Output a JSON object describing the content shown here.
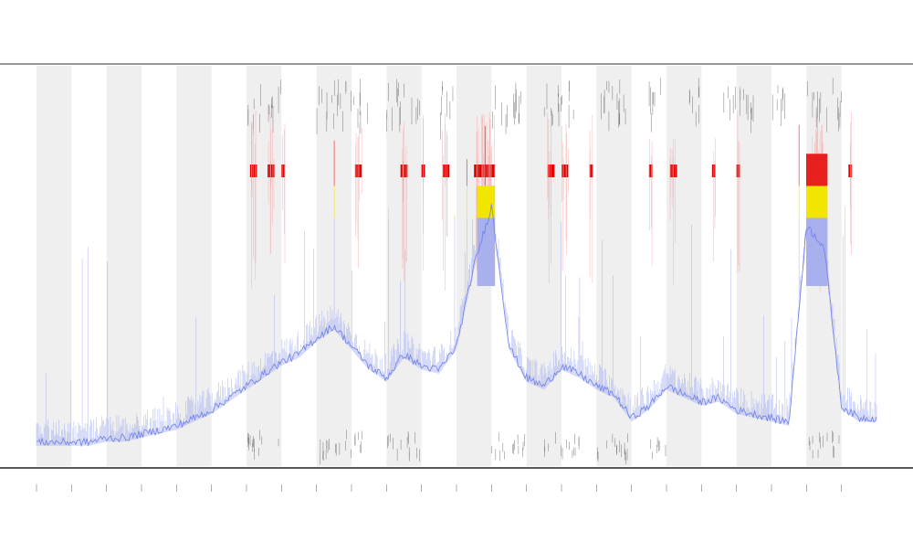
{
  "chart_data": {
    "type": "line",
    "title": "",
    "xlabel": "",
    "ylabel": "",
    "grid": false,
    "legend": "none",
    "x_range": [
      0,
      24
    ],
    "y_range": [
      0,
      1
    ],
    "threshold_yellow": 0.62,
    "threshold_red": 0.7,
    "series": [
      {
        "values": [
          [
            0.0,
            0.06
          ],
          [
            0.5,
            0.06
          ],
          [
            1.0,
            0.06
          ],
          [
            1.5,
            0.06
          ],
          [
            2.0,
            0.07
          ],
          [
            2.5,
            0.07
          ],
          [
            3.0,
            0.08
          ],
          [
            3.5,
            0.09
          ],
          [
            4.0,
            0.1
          ],
          [
            4.5,
            0.12
          ],
          [
            5.0,
            0.14
          ],
          [
            5.5,
            0.17
          ],
          [
            6.0,
            0.2
          ],
          [
            6.5,
            0.23
          ],
          [
            7.0,
            0.26
          ],
          [
            7.5,
            0.28
          ],
          [
            8.0,
            0.32
          ],
          [
            8.5,
            0.35
          ],
          [
            9.0,
            0.3
          ],
          [
            9.5,
            0.25
          ],
          [
            10.0,
            0.22
          ],
          [
            10.5,
            0.28
          ],
          [
            11.0,
            0.25
          ],
          [
            11.5,
            0.24
          ],
          [
            12.0,
            0.3
          ],
          [
            12.5,
            0.5
          ],
          [
            13.0,
            0.65
          ],
          [
            13.5,
            0.3
          ],
          [
            14.0,
            0.22
          ],
          [
            14.5,
            0.2
          ],
          [
            15.0,
            0.25
          ],
          [
            15.5,
            0.23
          ],
          [
            16.0,
            0.2
          ],
          [
            16.5,
            0.18
          ],
          [
            17.0,
            0.12
          ],
          [
            17.5,
            0.15
          ],
          [
            18.0,
            0.2
          ],
          [
            18.5,
            0.18
          ],
          [
            19.0,
            0.16
          ],
          [
            19.5,
            0.17
          ],
          [
            20.0,
            0.14
          ],
          [
            20.5,
            0.13
          ],
          [
            21.0,
            0.12
          ],
          [
            21.5,
            0.11
          ],
          [
            22.0,
            0.6
          ],
          [
            22.5,
            0.55
          ],
          [
            23.0,
            0.15
          ],
          [
            23.5,
            0.12
          ],
          [
            24.0,
            0.12
          ]
        ]
      }
    ],
    "bands": [
      [
        0,
        1
      ],
      [
        2,
        3
      ],
      [
        4,
        5
      ],
      [
        6,
        7
      ],
      [
        8,
        9
      ],
      [
        10,
        11
      ],
      [
        12,
        13
      ],
      [
        14,
        15
      ],
      [
        16,
        17
      ],
      [
        18,
        19
      ],
      [
        20,
        21
      ],
      [
        22,
        23
      ]
    ],
    "red_event_ranges": [
      [
        6.1,
        6.3
      ],
      [
        6.6,
        6.8
      ],
      [
        7.0,
        7.1
      ],
      [
        9.1,
        9.3
      ],
      [
        10.4,
        10.6
      ],
      [
        11.0,
        11.1
      ],
      [
        11.6,
        11.8
      ],
      [
        12.5,
        13.1
      ],
      [
        14.6,
        14.8
      ],
      [
        15.0,
        15.2
      ],
      [
        15.8,
        15.9
      ],
      [
        17.5,
        17.6
      ],
      [
        18.1,
        18.3
      ],
      [
        19.3,
        19.4
      ],
      [
        20.0,
        20.1
      ],
      [
        22.0,
        22.5
      ],
      [
        23.2,
        23.3
      ]
    ],
    "top_marker_ranges": [
      [
        6.0,
        7.0
      ],
      [
        8.0,
        9.5
      ],
      [
        10.0,
        11.0
      ],
      [
        11.5,
        12.0
      ],
      [
        13.0,
        14.0
      ],
      [
        14.5,
        15.5
      ],
      [
        16.0,
        17.0
      ],
      [
        17.5,
        18.0
      ],
      [
        18.5,
        19.0
      ],
      [
        19.5,
        20.5
      ],
      [
        21.0,
        21.5
      ],
      [
        22.0,
        23.0
      ]
    ],
    "bottom_marker_ranges": [
      [
        6.0,
        7.0
      ],
      [
        8.0,
        9.5
      ],
      [
        10.0,
        11.0
      ],
      [
        13.0,
        14.0
      ],
      [
        14.5,
        15.5
      ],
      [
        16.0,
        17.0
      ],
      [
        17.5,
        18.0
      ],
      [
        22.0,
        23.0
      ]
    ],
    "x_ticks": [
      0,
      1,
      2,
      3,
      4,
      5,
      6,
      7,
      8,
      9,
      10,
      11,
      12,
      13,
      14,
      15,
      16,
      17,
      18,
      19,
      20,
      21,
      22,
      23
    ]
  }
}
